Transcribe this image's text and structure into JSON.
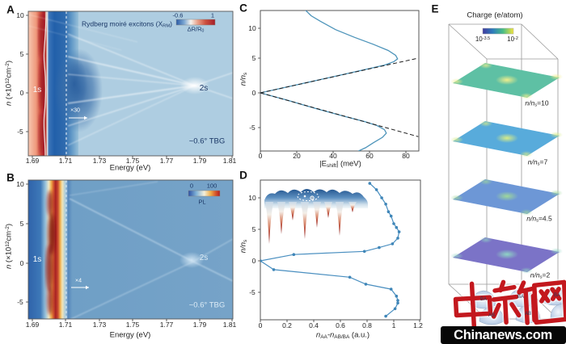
{
  "shared": {
    "energy_label": "Energy (eV)",
    "energy_ticks": [
      "1.69",
      "1.71",
      "1.73",
      "1.75",
      "1.77",
      "1.79",
      "1.81"
    ],
    "density_ratio_ticks": [
      "10",
      "5",
      "0",
      "-5"
    ],
    "density_label_parts": {
      "p1": "n",
      "p2": " (×10",
      "s1": "12",
      "p3": "cm",
      "s2": "-2",
      "p4": ")"
    },
    "nns": {
      "pre": "n/n",
      "sub": "s"
    }
  },
  "panels": {
    "a": {
      "letter": "A",
      "title_parts": {
        "pre": "Rydberg moiré excitons (X",
        "sub": "RM",
        "post": ")"
      },
      "colorbar": {
        "min": "-0.6",
        "max": "1",
        "label_pre": "ΔR/R",
        "label_sub": "0"
      },
      "labels": {
        "state_1s": "1s",
        "state_2s": "2s",
        "multiplier": "×30",
        "sample": "~0.6° TBG"
      }
    },
    "b": {
      "letter": "B",
      "colorbar": {
        "min": "0",
        "max": "100",
        "label": "PL"
      },
      "labels": {
        "state_1s": "1s",
        "state_2s": "2s",
        "multiplier": "×4",
        "sample": "~0.6° TBG"
      }
    },
    "c": {
      "letter": "C",
      "x_ticks": [
        "0",
        "20",
        "40",
        "60",
        "80"
      ],
      "x_label_parts": {
        "p1": "|E",
        "sub": "shift",
        "p2": "| (meV)"
      }
    },
    "d": {
      "letter": "D",
      "x_ticks": [
        "0",
        "0.2",
        "0.4",
        "0.6",
        "0.8",
        "1",
        "1.2"
      ],
      "x_label_parts": {
        "p1": "n",
        "s1": "AA",
        "p2": "-n",
        "s2": "AB/BA",
        "p3": " (a.u.)"
      }
    },
    "e": {
      "letter": "E",
      "title": "Charge (e/atom)",
      "colorbar": {
        "min_base": "10",
        "min_exp": "-3.5",
        "max_base": "10",
        "max_exp": "-2"
      },
      "layers": [
        {
          "pre": "n/n",
          "sub": "s",
          "post": "=10"
        },
        {
          "pre": "n/n",
          "sub": "s",
          "post": "=7"
        },
        {
          "pre": "n/n",
          "sub": "s",
          "post": "=4.5"
        },
        {
          "pre": "n/n",
          "sub": "s",
          "post": "=2"
        }
      ],
      "domain_labels": [
        "BA",
        "BA",
        "AB",
        "AB",
        "BA"
      ]
    }
  },
  "watermark": {
    "logo_text": "中新网",
    "site": "Chinanews.com"
  },
  "chart_data": [
    {
      "panel": "A",
      "type": "heatmap",
      "title": "Rydberg moiré excitons (X_RM)",
      "x_label": "Energy (eV)",
      "x_range": [
        1.688,
        1.81
      ],
      "y_label": "n (10^12 cm^-2)",
      "y_range": [
        -8,
        10.3
      ],
      "colorbar": {
        "label": "ΔR/R0",
        "min": -0.6,
        "max": 1
      },
      "features": {
        "exciton_1s_eV": 1.7,
        "exciton_2s_eV": 1.785,
        "annotations": [
          "1s",
          "2s",
          "×30",
          "~0.6° TBG"
        ]
      }
    },
    {
      "panel": "B",
      "type": "heatmap",
      "x_label": "Energy (eV)",
      "x_range": [
        1.688,
        1.81
      ],
      "y_label": "n (10^12 cm^-2)",
      "y_range": [
        -8,
        10.3
      ],
      "colorbar": {
        "label": "PL",
        "min": 0,
        "max": 100
      },
      "features": {
        "emission_1s_eV": 1.7,
        "exciton_2s_eV": 1.783,
        "annotations": [
          "1s",
          "2s",
          "×4",
          "~0.6° TBG"
        ]
      }
    },
    {
      "panel": "C",
      "type": "line",
      "x_label": "|E_shift| (meV)",
      "x_range": [
        0,
        84
      ],
      "y_label": "n/n_s",
      "y_range": [
        -8.4,
        11.9
      ],
      "series": [
        {
          "name": "solid_upper",
          "points": [
            [
              0,
              0
            ],
            [
              15,
              0.9
            ],
            [
              30,
              1.8
            ],
            [
              45,
              2.7
            ],
            [
              58,
              3.5
            ],
            [
              66,
              4.0
            ],
            [
              71,
              4.5
            ],
            [
              73,
              4.9
            ],
            [
              72,
              5.4
            ],
            [
              68,
              6.1
            ],
            [
              60,
              7.0
            ],
            [
              50,
              8.0
            ],
            [
              40,
              9.1
            ],
            [
              32,
              10.3
            ],
            [
              27,
              11.1
            ],
            [
              24,
              11.9
            ]
          ]
        },
        {
          "name": "solid_lower",
          "points": [
            [
              0,
              0
            ],
            [
              15,
              -1.1
            ],
            [
              30,
              -2.3
            ],
            [
              45,
              -3.4
            ],
            [
              55,
              -4.1
            ],
            [
              62,
              -4.7
            ],
            [
              66,
              -5.3
            ],
            [
              67,
              -5.8
            ],
            [
              65,
              -6.4
            ],
            [
              60,
              -7.2
            ],
            [
              56,
              -7.9
            ],
            [
              52,
              -8.4
            ]
          ]
        },
        {
          "name": "dashed_upper",
          "points": [
            [
              0,
              0
            ],
            [
              84,
              5.0
            ]
          ]
        },
        {
          "name": "dashed_lower",
          "points": [
            [
              0,
              0
            ],
            [
              84,
              -6.3
            ]
          ]
        }
      ]
    },
    {
      "panel": "D",
      "type": "line",
      "x_label": "n_AA-n_AB/BA (a.u.)",
      "x_range": [
        0,
        1.2
      ],
      "y_label": "n/n_s",
      "y_range": [
        -9.4,
        12.8
      ],
      "series": [
        {
          "name": "upper",
          "points": [
            [
              0.82,
              12.3
            ],
            [
              0.87,
              11.3
            ],
            [
              0.91,
              10
            ],
            [
              0.94,
              9
            ],
            [
              0.96,
              7.8
            ],
            [
              0.98,
              7.1
            ],
            [
              1.0,
              5.9
            ],
            [
              1.02,
              5.3
            ],
            [
              1.04,
              4.6
            ],
            [
              1.03,
              3.6
            ],
            [
              0.99,
              2.7
            ],
            [
              0.89,
              2.1
            ],
            [
              0.78,
              1.5
            ],
            [
              0.25,
              1.0
            ],
            [
              0,
              0
            ]
          ]
        },
        {
          "name": "lower",
          "points": [
            [
              0,
              0
            ],
            [
              0.1,
              -1.4
            ],
            [
              0.67,
              -2.6
            ],
            [
              0.79,
              -3.7
            ],
            [
              0.98,
              -4.5
            ],
            [
              1.02,
              -5.6
            ],
            [
              1.03,
              -6.3
            ],
            [
              1.03,
              -6.7
            ],
            [
              1.01,
              -7.6
            ],
            [
              0.94,
              -8.8
            ]
          ]
        }
      ]
    },
    {
      "panel": "E",
      "type": "heatmap",
      "title": "Charge (e/atom)",
      "colorbar": {
        "scale": "log10",
        "min_label": "10^-3.5",
        "max_label": "10^-2"
      },
      "layers_n_over_ns": [
        10,
        7,
        4.5,
        2
      ],
      "domains": [
        "AB",
        "BA"
      ]
    }
  ]
}
